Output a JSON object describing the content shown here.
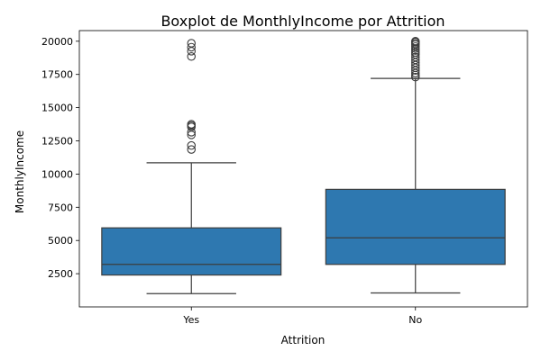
{
  "chart_data": {
    "type": "boxplot",
    "title": "Boxplot de MonthlyIncome por Attrition",
    "xlabel": "Attrition",
    "ylabel": "MonthlyIncome",
    "categories": [
      "Yes",
      "No"
    ],
    "ylim": [
      0,
      20800
    ],
    "yticks": [
      2500,
      5000,
      7500,
      10000,
      12500,
      15000,
      17500,
      20000
    ],
    "box_color": "#2e78b0",
    "line_color": "#3d3d3d",
    "grid": false,
    "boxes": [
      {
        "category": "Yes",
        "whisker_low": 1000,
        "q1": 2400,
        "median": 3200,
        "q3": 5950,
        "whisker_high": 10850,
        "fliers": [
          11850,
          12150,
          12950,
          13150,
          13550,
          13650,
          13750,
          18850,
          19250,
          19550,
          19850
        ]
      },
      {
        "category": "No",
        "whisker_low": 1050,
        "q1": 3200,
        "median": 5200,
        "q3": 8850,
        "whisker_high": 17200,
        "fliers": [
          17300,
          17450,
          17600,
          17800,
          18000,
          18200,
          18400,
          18600,
          18800,
          19000,
          19150,
          19300,
          19450,
          19600,
          19750,
          19850,
          19950,
          20000
        ]
      }
    ]
  }
}
